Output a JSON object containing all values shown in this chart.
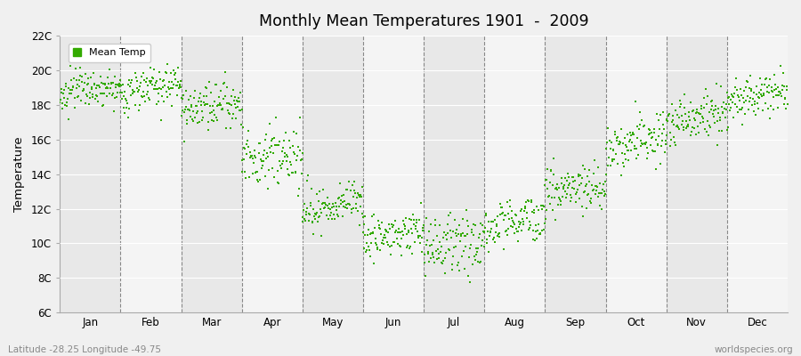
{
  "title": "Monthly Mean Temperatures 1901  -  2009",
  "ylabel": "Temperature",
  "ylim": [
    6,
    22
  ],
  "ytick_labels": [
    "6C",
    "8C",
    "10C",
    "12C",
    "14C",
    "16C",
    "18C",
    "20C",
    "22C"
  ],
  "ytick_values": [
    6,
    8,
    10,
    12,
    14,
    16,
    18,
    20,
    22
  ],
  "month_labels": [
    "Jan",
    "Feb",
    "Mar",
    "Apr",
    "May",
    "Jun",
    "Jul",
    "Aug",
    "Sep",
    "Oct",
    "Nov",
    "Dec"
  ],
  "dot_color": "#33aa00",
  "bg_color": "#f0f0f0",
  "plot_bg_color": "#f0f0f0",
  "legend_label": "Mean Temp",
  "footer_left": "Latitude -28.25 Longitude -49.75",
  "footer_right": "worldspecies.org",
  "n_years": 109,
  "monthly_means": [
    19.0,
    19.0,
    18.0,
    15.0,
    12.2,
    10.5,
    10.0,
    11.2,
    13.2,
    15.8,
    17.2,
    18.5
  ],
  "monthly_stds": [
    0.6,
    0.7,
    0.7,
    0.8,
    0.7,
    0.7,
    0.8,
    0.7,
    0.7,
    0.7,
    0.7,
    0.6
  ],
  "monthly_trends": [
    0.005,
    0.005,
    0.004,
    0.004,
    0.004,
    0.004,
    0.004,
    0.005,
    0.006,
    0.007,
    0.008,
    0.007
  ],
  "seed": 123
}
